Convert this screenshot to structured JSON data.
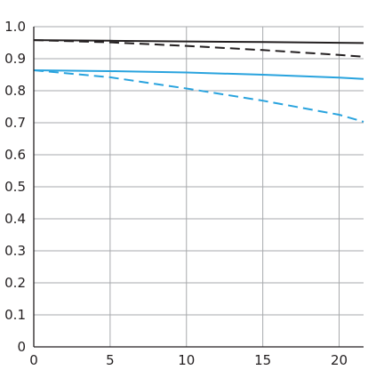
{
  "chart_data": {
    "type": "line",
    "xlim": [
      0,
      21.6
    ],
    "ylim": [
      0,
      1.0
    ],
    "x_ticks": [
      0,
      5,
      10,
      15,
      20
    ],
    "y_ticks": [
      0,
      0.1,
      0.2,
      0.3,
      0.4,
      0.5,
      0.6,
      0.7,
      0.8,
      0.9,
      1.0
    ],
    "x_tick_labels": [
      "0",
      "5",
      "10",
      "15",
      "20"
    ],
    "y_tick_labels": [
      "0",
      "0.1",
      "0.2",
      "0.3",
      "0.4",
      "0.5",
      "0.6",
      "0.7",
      "0.8",
      "0.9",
      "1.0"
    ],
    "grid": true,
    "series": [
      {
        "color": "#231f20",
        "dash": "solid",
        "x": [
          0,
          5,
          10,
          15,
          21.6
        ],
        "values": [
          0.958,
          0.956,
          0.954,
          0.952,
          0.949
        ]
      },
      {
        "color": "#231f20",
        "dash": "dashed",
        "x": [
          0,
          5,
          10,
          15,
          20,
          21.6
        ],
        "values": [
          0.958,
          0.951,
          0.94,
          0.927,
          0.912,
          0.906
        ]
      },
      {
        "color": "#29a3de",
        "dash": "solid",
        "x": [
          0,
          5,
          10,
          15,
          20,
          21.6
        ],
        "values": [
          0.864,
          0.861,
          0.857,
          0.85,
          0.841,
          0.837
        ]
      },
      {
        "color": "#29a3de",
        "dash": "dashed",
        "x": [
          0,
          5,
          10,
          15,
          20,
          21.6
        ],
        "values": [
          0.864,
          0.842,
          0.807,
          0.769,
          0.725,
          0.703
        ]
      }
    ]
  }
}
